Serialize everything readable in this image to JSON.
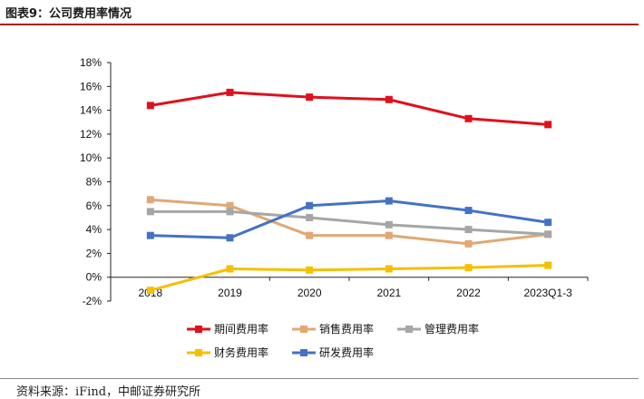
{
  "figure": {
    "title": "图表9：公司费用率情况",
    "source": "资料来源：iFind，中邮证券研究所"
  },
  "chart_data": {
    "type": "line",
    "categories": [
      "2018",
      "2019",
      "2020",
      "2021",
      "2022",
      "2023Q1-3"
    ],
    "yticks": [
      "18%",
      "16%",
      "14%",
      "12%",
      "10%",
      "8%",
      "6%",
      "4%",
      "2%",
      "0%",
      "-2%"
    ],
    "ylim": [
      -2,
      18
    ],
    "ylabel_unit": "%",
    "grid": false,
    "legend_position": "bottom",
    "series": [
      {
        "name": "期间费用率",
        "color": "#e0101e",
        "values": [
          14.4,
          15.5,
          15.1,
          14.9,
          13.3,
          12.8
        ]
      },
      {
        "name": "销售费用率",
        "color": "#e0a874",
        "values": [
          6.5,
          6.0,
          3.5,
          3.5,
          2.8,
          3.6
        ]
      },
      {
        "name": "管理费用率",
        "color": "#a6a6a6",
        "values": [
          5.5,
          5.5,
          5.0,
          4.4,
          4.0,
          3.6
        ]
      },
      {
        "name": "财务费用率",
        "color": "#f5c000",
        "values": [
          -1.1,
          0.7,
          0.6,
          0.7,
          0.8,
          1.0
        ]
      },
      {
        "name": "研发费用率",
        "color": "#4472c4",
        "values": [
          3.5,
          3.3,
          6.0,
          6.4,
          5.6,
          4.6
        ]
      }
    ]
  }
}
